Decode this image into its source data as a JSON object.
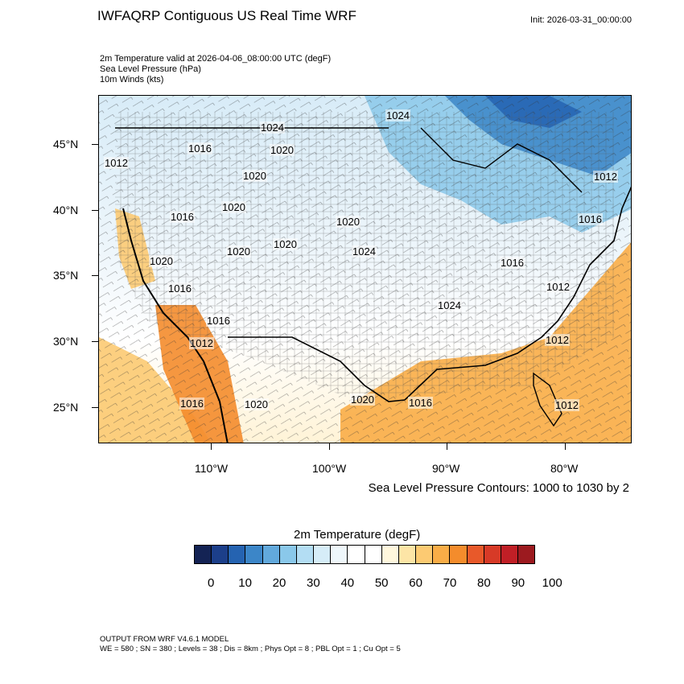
{
  "header": {
    "title": "IWFAQRP Contiguous US Real Time WRF",
    "init": "Init: 2026-03-31_00:00:00",
    "subtitles": [
      "2m Temperature valid at 2026-04-06_08:00:00 UTC   (degF)",
      "Sea Level Pressure   (hPa)",
      "10m Winds   (kts)"
    ]
  },
  "map": {
    "lat_labels": [
      "45°N",
      "40°N",
      "35°N",
      "30°N",
      "25°N"
    ],
    "lon_labels": [
      "110°W",
      "100°W",
      "90°W",
      "80°W"
    ],
    "slp_labels": [
      "1024",
      "1024",
      "1020",
      "1016",
      "1012",
      "1020",
      "1020",
      "1016",
      "1020",
      "1020",
      "1020",
      "1024",
      "1020",
      "1016",
      "1016",
      "1012",
      "1016",
      "1012",
      "1012",
      "1016",
      "1024",
      "1016",
      "1012",
      "1012",
      "1020",
      "1020",
      "1016",
      "1016",
      "1012",
      "1012"
    ],
    "contour_note": "Sea Level Pressure Contours: 1000 to 1030 by 2"
  },
  "colorbar": {
    "title": "2m Temperature  (degF)",
    "colors": [
      "#142354",
      "#1c3f8a",
      "#2563b1",
      "#3c86c8",
      "#62a9dc",
      "#8ac8ea",
      "#b3ddf3",
      "#d6edf8",
      "#eff7fb",
      "#ffffff",
      "#ffffff",
      "#fff7dd",
      "#fde5a6",
      "#fcca72",
      "#f9ad47",
      "#f48c2c",
      "#e8592a",
      "#d73a27",
      "#c01f26",
      "#9c1a1f"
    ],
    "labels": [
      "0",
      "10",
      "20",
      "30",
      "40",
      "50",
      "60",
      "70",
      "80",
      "90",
      "100"
    ]
  },
  "footer": {
    "line1": "OUTPUT FROM WRF V4.6.1 MODEL",
    "line2": "WE = 580 ; SN = 380 ; Levels = 38 ; Dis = 8km ; Phys Opt = 8 ; PBL Opt = 1 ; Cu Opt = 5"
  }
}
